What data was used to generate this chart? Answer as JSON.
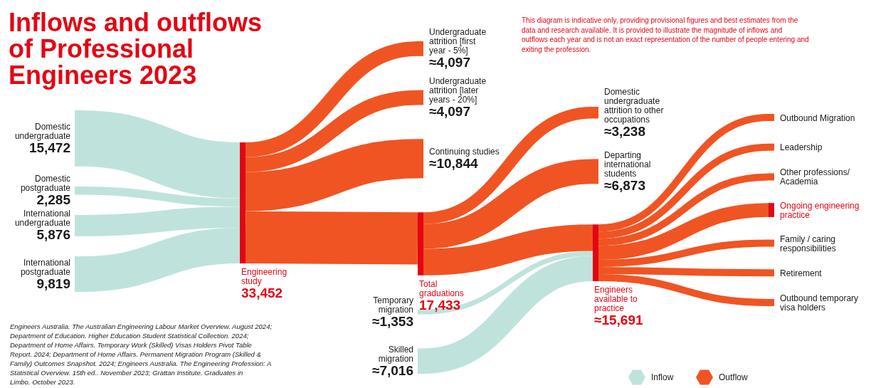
{
  "chart_data": {
    "type": "other",
    "title": "Inflows and outflows of Professional Engineers 2023",
    "categories": [
      "Domestic undergraduate",
      "Domestic postgraduate",
      "International undergraduate",
      "International postgraduate",
      "Engineering study",
      "Undergraduate attrition [first year - 5%]",
      "Undergraduate attrition [later years - 20%]",
      "Continuing studies",
      "Total graduations",
      "Domestic undergraduate attrition to other occupations",
      "Departing international students",
      "Temporary migration",
      "Skilled migration",
      "Engineers available to practice",
      "Outbound Migration",
      "Leadership",
      "Other professions/ Academia",
      "Ongoing engineering practice",
      "Family / caring responsibilities",
      "Retirement",
      "Outbound temporary visa holders"
    ],
    "colors": [
      "#bfe3dc",
      "#bfe3dc",
      "#bfe3dc",
      "#bfe3dc",
      "#e30613",
      "#f05423",
      "#f05423",
      "#f05423",
      "#e30613",
      "#f05423",
      "#f05423",
      "#bfe3dc",
      "#bfe3dc",
      "#e30613",
      "#f05423",
      "#f05423",
      "#f05423",
      "#e30613",
      "#f05423",
      "#f05423",
      "#f05423"
    ],
    "series": [
      {
        "name": "Inflow",
        "color": "#bfe3dc",
        "values": [
          15472,
          2285,
          5876,
          9819,
          null,
          null,
          null,
          null,
          null,
          null,
          null,
          1353,
          7016,
          null,
          null,
          null,
          null,
          null,
          null,
          null,
          null
        ],
        "value_labels": [
          "15,472",
          "2,285",
          "5,876",
          "9,819",
          null,
          null,
          null,
          null,
          null,
          null,
          null,
          "≈1,353",
          "≈7,016",
          null,
          null,
          null,
          null,
          null,
          null,
          null,
          null
        ]
      },
      {
        "name": "Outflow",
        "color": "#f05423",
        "values": [
          null,
          null,
          null,
          null,
          null,
          4097,
          4097,
          10844,
          null,
          3238,
          6873,
          null,
          null,
          null,
          null,
          null,
          null,
          null,
          null,
          null,
          null
        ],
        "value_labels": [
          null,
          null,
          null,
          null,
          null,
          "≈4,097",
          "≈4,097",
          "≈10,844",
          null,
          "≈3,238",
          "≈6,873",
          null,
          null,
          null,
          null,
          null,
          null,
          null,
          null,
          null,
          null
        ]
      },
      {
        "color": "#e30613",
        "values": [
          null,
          null,
          null,
          null,
          33452,
          null,
          null,
          null,
          17433,
          null,
          null,
          null,
          null,
          15691,
          null,
          null,
          null,
          null,
          null,
          null,
          null
        ],
        "value_labels": [
          null,
          null,
          null,
          null,
          "33,452",
          null,
          null,
          null,
          "17,433",
          null,
          null,
          null,
          null,
          "≈15,691",
          null,
          null,
          null,
          null,
          null,
          null,
          null
        ]
      }
    ],
    "legend": "bottom right",
    "annotations": [
      "This diagram is indicative only, providing provisional figures and best estimates from the data and research available. It is provided to illustrate the magnitude of inflows and outflows each year and is not an exact representation of the number of people entering and exiting the profession.",
      "Engineers Australia. The Australian Engineering Labour Market Overview. August 2024; Department of Education. Higher Education Student Statistical Collection. 2024; Department of Home Affairs. Temporary Work (Skilled) Visas Holders Pivot Table Report. 2024; Department of Home Affairs. Permanent Migration Program (Skilled & Family) Outcomes Snapshot. 2024; Engineers Australia. The Engineering Profession: A Statistical Overview. 15th ed.. November 2023; Grattan Institute. Graduates in Limbo. October 2023."
    ]
  }
}
